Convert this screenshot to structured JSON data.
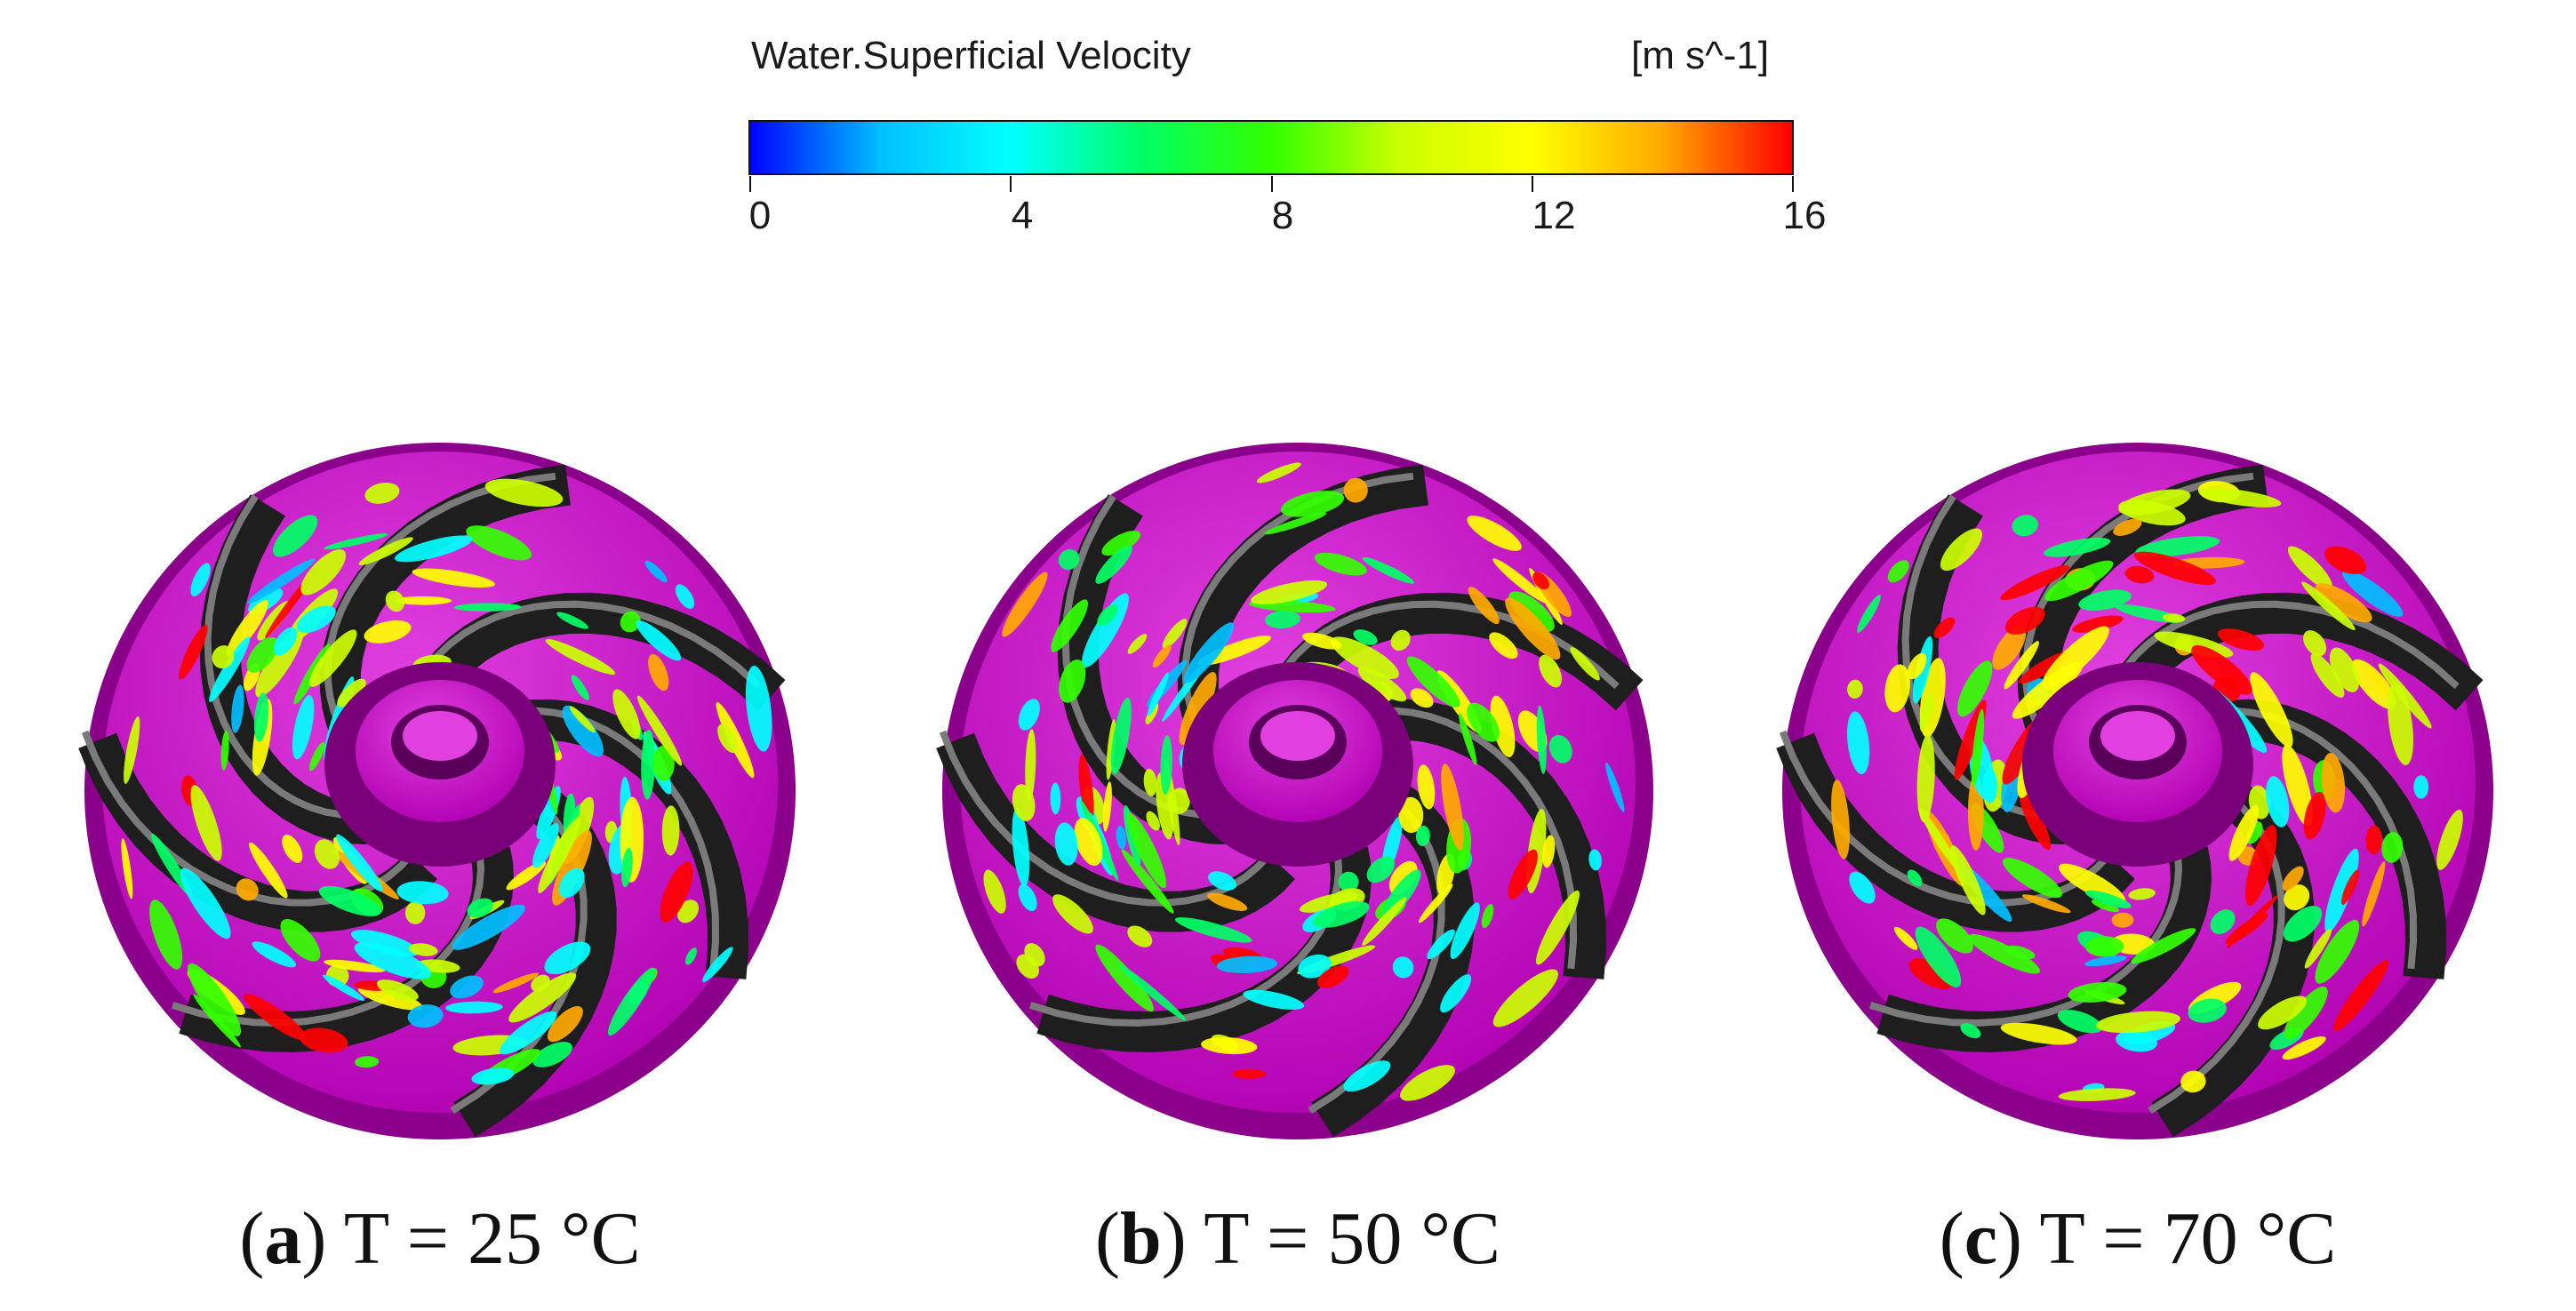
{
  "legend": {
    "title": "Water.Superficial Velocity",
    "unit": "[m s^-1]",
    "ticks": [
      "0",
      "4",
      "8",
      "12",
      "16"
    ],
    "gradient": [
      "#0000ff",
      "#00bfff",
      "#00ffff",
      "#00ff66",
      "#33ff00",
      "#ccff00",
      "#ffff00",
      "#ffaa00",
      "#ff0000"
    ]
  },
  "panels": [
    {
      "letter": "a",
      "label": "T = 25 °C",
      "intensity": 0.3
    },
    {
      "letter": "b",
      "label": "T = 50 °C",
      "intensity": 0.4
    },
    {
      "letter": "c",
      "label": "T = 70 °C",
      "intensity": 0.85
    }
  ],
  "colors": {
    "hub": "#b000b0",
    "hub_light": "#e040e0",
    "blade": "#1e1e1e",
    "blade_edge": "#7a7a7a"
  }
}
